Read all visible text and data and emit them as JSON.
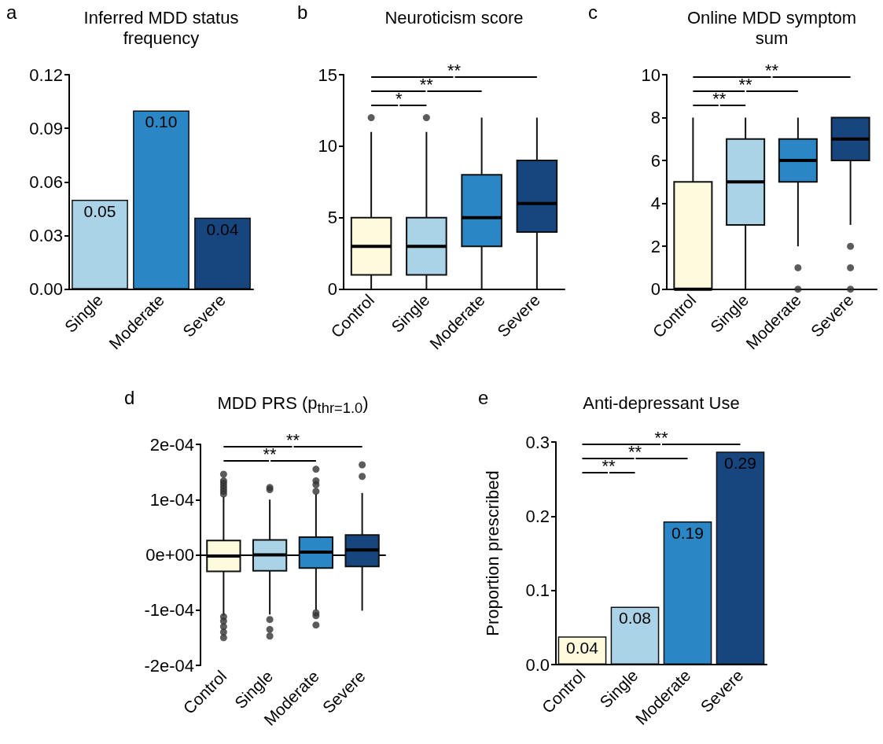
{
  "chart_data": [
    {
      "type": "bar",
      "title": "Inferred MDD status frequency",
      "categories": [
        "Single",
        "Moderate",
        "Severe"
      ],
      "values": [
        0.05,
        0.1,
        0.04
      ],
      "value_labels": [
        "0.05",
        "0.10",
        "0.04"
      ],
      "colors": [
        "#abd3e8",
        "#2b86c5",
        "#17467e"
      ],
      "ylim": [
        0,
        0.12
      ],
      "yticks": [
        {
          "value": 0,
          "label": "0.00"
        },
        0.03,
        0.06,
        0.09,
        0.12
      ],
      "annotations": [
        "a"
      ]
    },
    {
      "type": "box",
      "title": "Neuroticism score",
      "categories": [
        "Control",
        "Single",
        "Moderate",
        "Severe"
      ],
      "colors": [
        "#fdfadd",
        "#abd3e8",
        "#2b86c5",
        "#17467e"
      ],
      "boxes": [
        {
          "low": 0,
          "q1": 1,
          "median": 3,
          "q3": 5,
          "high": 11,
          "outliers": [
            12
          ]
        },
        {
          "low": 0,
          "q1": 1,
          "median": 3,
          "q3": 5,
          "high": 11,
          "outliers": [
            12
          ]
        },
        {
          "low": 0,
          "q1": 3,
          "median": 5,
          "q3": 8,
          "high": 12
        },
        {
          "low": 0,
          "q1": 4,
          "median": 6,
          "q3": 9,
          "high": 12
        }
      ],
      "ylim": [
        0,
        15
      ],
      "yticks": [
        0,
        5,
        10,
        15
      ],
      "annotations": [
        "b",
        "*",
        "**",
        "**"
      ]
    },
    {
      "type": "box",
      "title": "Online MDD symptom sum",
      "categories": [
        "Control",
        "Single",
        "Moderate",
        "Severe"
      ],
      "colors": [
        "#fdfadd",
        "#abd3e8",
        "#2b86c5",
        "#17467e"
      ],
      "boxes": [
        {
          "low": 0,
          "q1": 0,
          "median": 0,
          "q3": 5,
          "high": 8
        },
        {
          "low": 0,
          "q1": 3,
          "median": 5,
          "q3": 7,
          "high": 8
        },
        {
          "low": 2,
          "q1": 5,
          "median": 6,
          "q3": 7,
          "high": 8,
          "outliers": [
            1,
            0
          ]
        },
        {
          "low": 3,
          "q1": 6,
          "median": 7,
          "q3": 8,
          "high": 8,
          "outliers": [
            2,
            1,
            0
          ]
        }
      ],
      "ylim": [
        0,
        10
      ],
      "yticks": [
        0,
        2,
        4,
        6,
        8,
        10
      ],
      "annotations": [
        "c",
        "**",
        "**",
        "**"
      ]
    },
    {
      "type": "box",
      "title": "MDD PRS (p$_{thr=1.0}$)",
      "categories": [
        "Control",
        "Single",
        "Moderate",
        "Severe"
      ],
      "colors": [
        "#fdfadd",
        "#abd3e8",
        "#2b86c5",
        "#17467e"
      ],
      "boxes": [
        {
          "low": -0.00011,
          "q1": -3e-05,
          "median": -2e-06,
          "q3": 2.6e-05,
          "high": 0.000105,
          "outliers": [
            0.000146,
            0.000134,
            0.00013,
            0.000125,
            0.00012,
            0.000115,
            0.00011,
            -0.000112,
            -0.00012,
            -0.00013,
            -0.00014,
            -0.00015
          ]
        },
        {
          "low": -0.000108,
          "q1": -2.9e-05,
          "median": 0,
          "q3": 2.7e-05,
          "high": 0.0001,
          "outliers": [
            0.000122,
            0.000118,
            -0.000117,
            -0.000135,
            -0.000147
          ]
        },
        {
          "low": -0.0001,
          "q1": -2.4e-05,
          "median": 5e-06,
          "q3": 3.2e-05,
          "high": 0.00011,
          "outliers": [
            0.000155,
            0.000134,
            0.000127,
            0.000115,
            -0.000105,
            -0.00011,
            -0.000127
          ]
        },
        {
          "low": -0.000101,
          "q1": -2.1e-05,
          "median": 9e-06,
          "q3": 3.6e-05,
          "high": 0.000112,
          "outliers": [
            0.000163,
            0.000142
          ]
        }
      ],
      "ylim": [
        -0.0002,
        0.0002
      ],
      "yticks": [
        {
          "value": -0.0002,
          "label": "-2e-04"
        },
        {
          "value": -0.0001,
          "label": "-1e-04"
        },
        {
          "value": 0,
          "label": "0e+00"
        },
        {
          "value": 0.0001,
          "label": "1e-04"
        },
        {
          "value": 0.0002,
          "label": "2e-04"
        }
      ],
      "annotations": [
        "d",
        "**",
        "**"
      ]
    },
    {
      "type": "bar",
      "title": "Anti-depressant Use",
      "ylabel": "Proportion prescribed",
      "categories": [
        "Control",
        "Single",
        "Moderate",
        "Severe"
      ],
      "values": [
        0.038,
        0.078,
        0.193,
        0.287
      ],
      "value_labels": [
        "0.04",
        "0.08",
        "0.19",
        "0.29"
      ],
      "colors": [
        "#fdfadd",
        "#abd3e8",
        "#2b86c5",
        "#17467e"
      ],
      "ylim": [
        0,
        0.3
      ],
      "yticks": [
        {
          "value": 0,
          "label": "0.0"
        },
        0.1,
        0.2,
        0.3
      ],
      "annotations": [
        "e",
        "**",
        "**",
        "**"
      ]
    }
  ]
}
